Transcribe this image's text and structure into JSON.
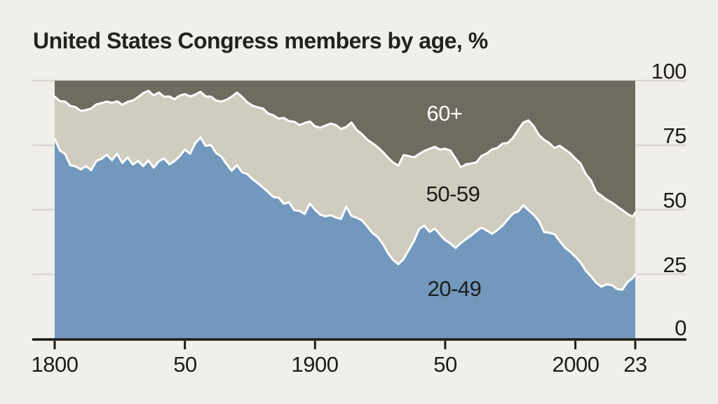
{
  "title": "United States Congress members by age, %",
  "colors": {
    "background": "#f1efe9",
    "band_20_49": "#7298bd",
    "band_50_59": "#d0ccc0",
    "band_60plus": "#6e6c61",
    "boundary_stroke": "#ffffff",
    "gridline": "#dbd8d1",
    "axis": "#1a1a19",
    "text": "#1d1c1a",
    "label_60plus_text": "#ffffff"
  },
  "chart_data": {
    "type": "area",
    "stacked": true,
    "title": "United States Congress members by age, %",
    "xlabel": "",
    "ylabel": "%",
    "ylim": [
      0,
      100
    ],
    "grid": true,
    "legend_position": "inline-on-areas",
    "x": [
      1800,
      1802,
      1804,
      1806,
      1808,
      1810,
      1812,
      1814,
      1816,
      1818,
      1820,
      1822,
      1824,
      1826,
      1828,
      1830,
      1832,
      1834,
      1836,
      1838,
      1840,
      1842,
      1844,
      1846,
      1848,
      1850,
      1852,
      1854,
      1856,
      1858,
      1860,
      1862,
      1864,
      1866,
      1868,
      1870,
      1872,
      1874,
      1876,
      1878,
      1880,
      1882,
      1884,
      1886,
      1888,
      1890,
      1892,
      1894,
      1896,
      1898,
      1900,
      1902,
      1904,
      1906,
      1908,
      1910,
      1912,
      1914,
      1916,
      1918,
      1920,
      1922,
      1924,
      1926,
      1928,
      1930,
      1932,
      1934,
      1936,
      1938,
      1940,
      1942,
      1944,
      1946,
      1948,
      1950,
      1952,
      1954,
      1956,
      1958,
      1960,
      1962,
      1964,
      1966,
      1968,
      1970,
      1972,
      1974,
      1976,
      1978,
      1980,
      1982,
      1984,
      1986,
      1988,
      1990,
      1992,
      1994,
      1996,
      1998,
      2000,
      2002,
      2004,
      2006,
      2008,
      2010,
      2012,
      2014,
      2016,
      2018,
      2020,
      2022,
      2023
    ],
    "series": [
      {
        "name": "20-49",
        "color": "#7298bd",
        "values": [
          77.4,
          73.0,
          71.6,
          67.2,
          66.8,
          65.6,
          66.9,
          65.3,
          68.9,
          69.7,
          71.3,
          69.2,
          71.7,
          68.1,
          70.3,
          67.5,
          68.9,
          66.9,
          69.1,
          66.3,
          68.8,
          69.9,
          67.6,
          68.8,
          70.7,
          73.3,
          71.7,
          75.8,
          78.0,
          74.7,
          75.1,
          72.0,
          70.6,
          67.7,
          65.1,
          67.3,
          64.5,
          63.8,
          61.8,
          60.3,
          58.6,
          56.8,
          54.9,
          54.7,
          52.3,
          52.9,
          49.8,
          49.6,
          48.3,
          52.4,
          50.0,
          48.1,
          47.4,
          47.9,
          47.0,
          46.4,
          51.2,
          47.6,
          46.9,
          45.9,
          43.6,
          41.0,
          39.5,
          36.8,
          33.2,
          30.5,
          28.9,
          30.9,
          34.4,
          37.9,
          42.6,
          43.8,
          41.4,
          42.7,
          40.3,
          38.2,
          36.9,
          35.2,
          37.1,
          38.6,
          40.0,
          41.7,
          43.1,
          41.9,
          40.7,
          42.1,
          43.8,
          46.2,
          48.5,
          49.3,
          51.7,
          49.8,
          48.0,
          45.6,
          41.3,
          41.1,
          40.5,
          37.8,
          35.3,
          33.7,
          31.8,
          29.6,
          26.3,
          24.2,
          21.7,
          20.2,
          21.1,
          20.8,
          19.3,
          19.0,
          21.9,
          23.5,
          25.1
        ]
      },
      {
        "name": "50-59",
        "color": "#d0ccc0",
        "values": [
          16.4,
          19.1,
          20.3,
          23.0,
          23.0,
          22.7,
          21.7,
          23.9,
          21.9,
          21.6,
          20.6,
          22.2,
          20.3,
          22.6,
          21.5,
          24.8,
          24.7,
          28.3,
          27.0,
          28.0,
          26.6,
          23.9,
          26.3,
          24.0,
          23.5,
          21.5,
          22.2,
          18.8,
          17.7,
          19.2,
          18.7,
          20.3,
          21.3,
          24.9,
          28.7,
          28.1,
          29.2,
          27.8,
          28.5,
          29.4,
          30.6,
          30.5,
          31.7,
          30.6,
          33.3,
          31.4,
          34.3,
          33.2,
          35.3,
          31.8,
          32.3,
          33.7,
          35.2,
          35.5,
          35.8,
          34.9,
          30.9,
          36.2,
          34.0,
          33.4,
          33.6,
          34.8,
          34.8,
          35.6,
          37.0,
          37.8,
          38.2,
          40.3,
          36.4,
          32.4,
          29.0,
          29.0,
          32.2,
          31.7,
          33.0,
          35.4,
          36.0,
          34.6,
          29.3,
          29.0,
          27.9,
          26.7,
          27.8,
          29.9,
          32.7,
          31.8,
          31.8,
          29.7,
          29.3,
          31.6,
          32.1,
          34.8,
          34.4,
          33.3,
          35.8,
          34.7,
          33.4,
          37.0,
          38.0,
          38.2,
          38.0,
          38.3,
          37.5,
          37.2,
          35.2,
          35.2,
          32.8,
          32.0,
          32.0,
          30.9,
          26.5,
          23.8,
          23.8
        ]
      },
      {
        "name": "60+",
        "color": "#6e6c61",
        "values": [
          6.2,
          7.9,
          8.1,
          9.8,
          10.2,
          11.7,
          11.4,
          10.8,
          9.2,
          8.7,
          8.1,
          8.6,
          8.0,
          9.3,
          8.2,
          7.7,
          6.4,
          4.8,
          3.9,
          5.7,
          4.6,
          6.2,
          6.1,
          7.2,
          5.8,
          5.2,
          6.1,
          5.4,
          4.3,
          6.1,
          6.2,
          7.7,
          8.1,
          7.4,
          6.2,
          4.6,
          6.3,
          8.4,
          9.7,
          10.3,
          10.8,
          12.7,
          13.4,
          14.7,
          14.4,
          15.7,
          15.9,
          17.2,
          16.4,
          15.8,
          17.7,
          18.2,
          17.4,
          16.6,
          17.2,
          18.7,
          17.9,
          16.2,
          19.1,
          20.7,
          22.8,
          24.2,
          25.7,
          27.6,
          29.8,
          31.7,
          32.9,
          28.8,
          29.2,
          29.7,
          28.4,
          27.2,
          26.4,
          25.6,
          26.7,
          26.4,
          27.1,
          30.2,
          33.6,
          32.4,
          32.1,
          31.6,
          29.1,
          28.2,
          26.6,
          26.1,
          24.4,
          24.1,
          22.2,
          19.1,
          16.2,
          15.4,
          17.6,
          21.1,
          22.9,
          24.2,
          26.1,
          25.2,
          26.7,
          28.1,
          30.2,
          32.1,
          36.2,
          38.6,
          43.1,
          44.6,
          46.1,
          47.2,
          48.7,
          50.1,
          51.6,
          52.7,
          51.1
        ]
      }
    ],
    "x_ticks": [
      {
        "label": "1800",
        "year": 1800
      },
      {
        "label": "50",
        "year": 1850
      },
      {
        "label": "1900",
        "year": 1900
      },
      {
        "label": "50",
        "year": 1950
      },
      {
        "label": "2000",
        "year": 2000
      },
      {
        "label": "23",
        "year": 2023
      }
    ],
    "y_ticks": [
      {
        "label": "100",
        "value": 100
      },
      {
        "label": "75",
        "value": 75
      },
      {
        "label": "50",
        "value": 50
      },
      {
        "label": "25",
        "value": 25
      },
      {
        "label": "0",
        "value": 0
      }
    ],
    "series_labels": [
      {
        "text": "60+",
        "series": "60+"
      },
      {
        "text": "50-59",
        "series": "50-59"
      },
      {
        "text": "20-49",
        "series": "20-49"
      }
    ]
  }
}
